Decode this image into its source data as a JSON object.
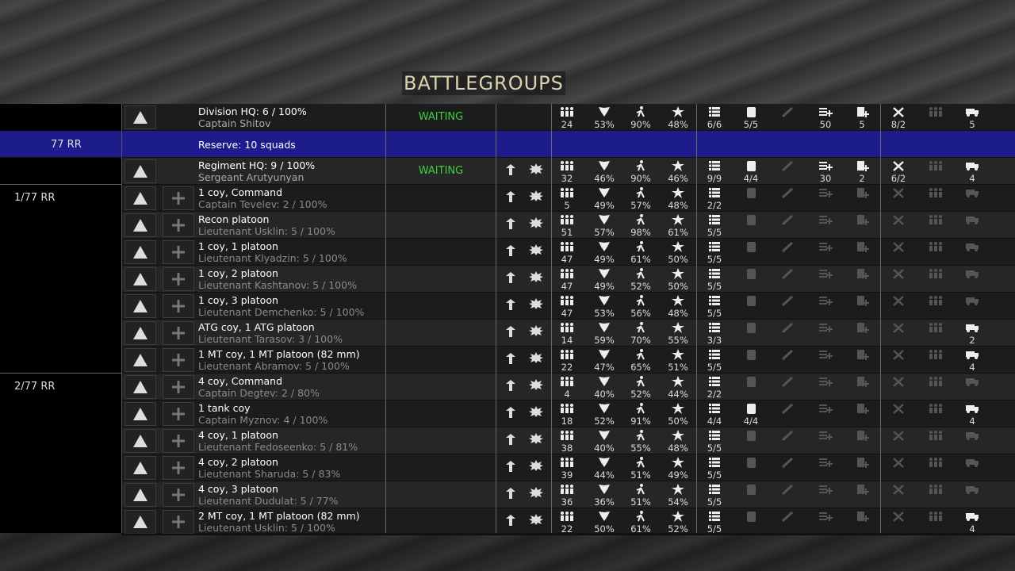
{
  "title": "BATTLEGROUPS",
  "rows": [
    {
      "name": "Division HQ: 6 / 100%",
      "commander": "Captain Shitov",
      "status": "WAITING",
      "men": "24",
      "morale": "53%",
      "stamina": "90%",
      "experience": "48%",
      "squads": "6/6",
      "fuel": "5/5",
      "supply": "50",
      "ammo": "5",
      "repairs": "8/2",
      "trucks": "5"
    },
    {
      "group": "77 RR",
      "name": "Reserve: 10  squads"
    },
    {
      "name": "Regiment HQ: 9 / 100%",
      "commander": "Sergeant Arutyunyan",
      "status": "WAITING",
      "men": "32",
      "morale": "46%",
      "stamina": "90%",
      "experience": "46%",
      "squads": "9/9",
      "fuel": "4/4",
      "supply": "30",
      "ammo": "2",
      "repairs": "6/2",
      "trucks": "4"
    },
    {
      "group": "1/77 RR",
      "name": "1 coy, Command",
      "commander": "Captain Tevelev: 2 / 100%",
      "men": "5",
      "morale": "49%",
      "stamina": "57%",
      "experience": "48%",
      "squads": "2/2"
    },
    {
      "name": "Recon platoon",
      "commander": "Lieutenant Usklin: 5 / 100%",
      "men": "51",
      "morale": "57%",
      "stamina": "98%",
      "experience": "61%",
      "squads": "5/5"
    },
    {
      "name": "1 coy, 1 platoon",
      "commander": "Lieutenant Klyadzin: 5 / 100%",
      "men": "47",
      "morale": "49%",
      "stamina": "61%",
      "experience": "50%",
      "squads": "5/5"
    },
    {
      "name": "1 coy, 2 platoon",
      "commander": "Lieutenant Kashtanov: 5 / 100%",
      "men": "47",
      "morale": "49%",
      "stamina": "52%",
      "experience": "50%",
      "squads": "5/5"
    },
    {
      "name": "1 coy, 3 platoon",
      "commander": "Lieutenant Demchenko: 5 / 100%",
      "men": "47",
      "morale": "53%",
      "stamina": "56%",
      "experience": "48%",
      "squads": "5/5"
    },
    {
      "name": "ATG coy, 1 ATG platoon",
      "commander": "Lieutenant Tarasov: 3 / 100%",
      "men": "14",
      "morale": "59%",
      "stamina": "70%",
      "experience": "55%",
      "squads": "3/3",
      "trucks": "2"
    },
    {
      "name": "1 MT coy, 1 MT platoon (82 mm)",
      "commander": "Lieutenant Abramov: 5 / 100%",
      "men": "22",
      "morale": "47%",
      "stamina": "65%",
      "experience": "51%",
      "squads": "5/5",
      "trucks": "4"
    },
    {
      "group": "2/77 RR",
      "name": "4 coy, Command",
      "commander": "Captain Degtev: 2 / 80%",
      "men": "4",
      "morale": "40%",
      "stamina": "52%",
      "experience": "44%",
      "squads": "2/2"
    },
    {
      "name": "1 tank coy",
      "commander": "Captain Myznov: 4 / 100%",
      "men": "18",
      "morale": "52%",
      "stamina": "91%",
      "experience": "50%",
      "squads": "4/4",
      "fuel": "4/4",
      "trucks": "4"
    },
    {
      "name": "4 coy, 1 platoon",
      "commander": "Lieutenant Fedoseenko: 5 / 81%",
      "men": "38",
      "morale": "40%",
      "stamina": "55%",
      "experience": "48%",
      "squads": "5/5"
    },
    {
      "name": "4 coy, 2 platoon",
      "commander": "Lieutenant Sharuda: 5 / 83%",
      "men": "39",
      "morale": "44%",
      "stamina": "51%",
      "experience": "49%",
      "squads": "5/5"
    },
    {
      "name": "4 coy, 3 platoon",
      "commander": "Lieutenant Dudulat: 5 / 77%",
      "men": "36",
      "morale": "36%",
      "stamina": "51%",
      "experience": "54%",
      "squads": "5/5"
    },
    {
      "name": "2 MT coy, 1 MT platoon (82 mm)",
      "commander": "Lieutenant Usklin: 5 / 100%",
      "men": "22",
      "morale": "50%",
      "stamina": "61%",
      "experience": "52%",
      "squads": "5/5",
      "trucks": "4"
    }
  ]
}
